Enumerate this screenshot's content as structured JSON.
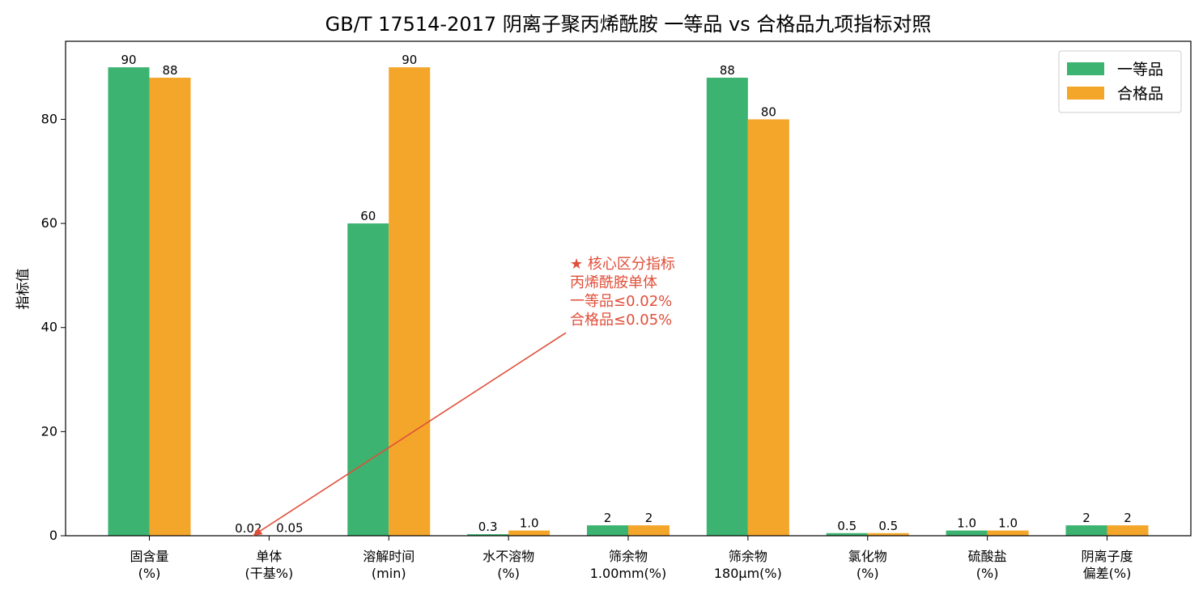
{
  "colors": {
    "series1": "#3cb371",
    "series2": "#f4a62a",
    "annotation": "#e04e39"
  },
  "chart_data": {
    "type": "bar",
    "title": "GB/T 17514-2017 阴离子聚丙烯酰胺 一等品 vs 合格品九项指标对照",
    "xlabel": "",
    "ylabel": "指标值",
    "ylim": [
      0,
      95
    ],
    "yticks": [
      0,
      20,
      40,
      60,
      80
    ],
    "grid": false,
    "legend": "top-right",
    "categories": [
      [
        "固含量",
        "(%)"
      ],
      [
        "单体",
        "(干基%)"
      ],
      [
        "溶解时间",
        "(min)"
      ],
      [
        "水不溶物",
        "(%)"
      ],
      [
        "筛余物",
        "1.00mm(%)"
      ],
      [
        "筛余物",
        "180μm(%)"
      ],
      [
        "氯化物",
        "(%)"
      ],
      [
        "硫酸盐",
        "(%)"
      ],
      [
        "阴离子度",
        "偏差(%)"
      ]
    ],
    "series": [
      {
        "name": "一等品",
        "values": [
          90,
          0.02,
          60,
          0.3,
          2,
          88,
          0.5,
          1.0,
          2
        ],
        "labels": [
          "90",
          "0.02",
          "60",
          "0.3",
          "2",
          "88",
          "0.5",
          "1.0",
          "2"
        ]
      },
      {
        "name": "合格品",
        "values": [
          88,
          0.05,
          90,
          1.0,
          2,
          80,
          0.5,
          1.0,
          2
        ],
        "labels": [
          "88",
          "0.05",
          "90",
          "1.0",
          "2",
          "80",
          "0.5",
          "1.0",
          "2"
        ]
      }
    ],
    "annotation": {
      "lines": [
        "★ 核心区分指标",
        "丙烯酰胺单体",
        "一等品≤0.02%",
        "合格品≤0.05%"
      ],
      "target_category_index": 1,
      "target_value": 0,
      "text_anchor_value": 39
    }
  }
}
